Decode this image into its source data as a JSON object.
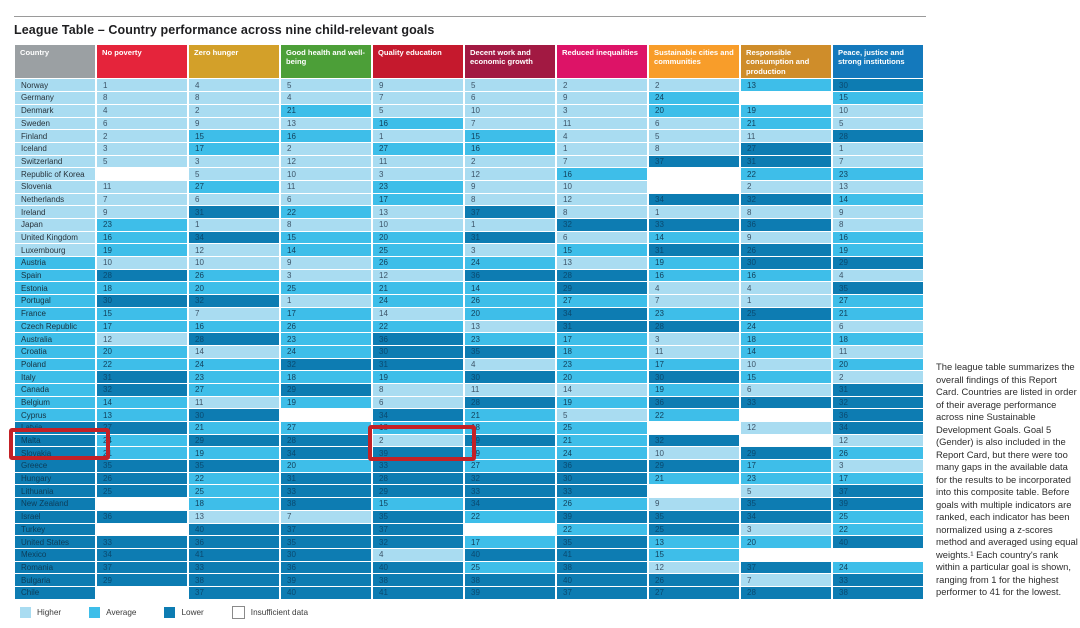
{
  "title": "League Table – Country performance across nine child-relevant goals",
  "note": {
    "text": "The league table summarizes the overall findings of this Report Card. Countries are listed in order of their average performance across nine Sustainable Development Goals. Goal 5 (Gender) is also included in the Report Card, but there were too many gaps in the available data for the results to be incorporated into this composite table. Before goals with multiple indicators are ranked, each indicator has been normalized using a z-scores method and averaged using equal weights.¹ Each country's rank within a particular goal is shown, ranging from 1 for the highest performer to 41 for the lowest."
  },
  "legend": {
    "items": [
      {
        "label": "Higher",
        "tier": "h",
        "color": "#a9dcf1"
      },
      {
        "label": "Average",
        "tier": "a",
        "color": "#3ebee9"
      },
      {
        "label": "Lower",
        "tier": "l",
        "color": "#0d7cb2"
      },
      {
        "label": "Insufficient data",
        "tier": "x",
        "color": "#ffffff"
      }
    ]
  },
  "highlight": {
    "color": "#c32126",
    "row": "Malta",
    "cell_goal": "Quality education",
    "cell_value": 2
  },
  "chart_data": {
    "type": "table",
    "title": "League Table – Country performance across nine child-relevant goals",
    "tier_colors": {
      "higher": "#a9dcf1",
      "average": "#3ebee9",
      "lower": "#0d7cb2",
      "insufficient": "#ffffff"
    },
    "rank_range": [
      1,
      41
    ],
    "columns": [
      {
        "key": "country",
        "label": "Country",
        "color": "#9ba0a3"
      },
      {
        "key": "np",
        "label": "No poverty",
        "color": "#e5243b"
      },
      {
        "key": "zh",
        "label": "Zero hunger",
        "color": "#d3a029"
      },
      {
        "key": "gh",
        "label": "Good health and well-being",
        "color": "#4c9f38"
      },
      {
        "key": "qe",
        "label": "Quality education",
        "color": "#c5192d"
      },
      {
        "key": "dw",
        "label": "Decent work and economic growth",
        "color": "#a21942"
      },
      {
        "key": "ri",
        "label": "Reduced inequalities",
        "color": "#dd1367"
      },
      {
        "key": "sc",
        "label": "Sustainable cities and communities",
        "color": "#f89d2a"
      },
      {
        "key": "rc",
        "label": "Responsible consumption and production",
        "color": "#cf8d2a"
      },
      {
        "key": "pj",
        "label": "Peace, justice and strong institutions",
        "color": "#1479bc"
      }
    ],
    "cell_encoding": "value followed by tier letter (h=higher, a=average, l=lower); x = insufficient data",
    "rows": [
      {
        "country": "Norway",
        "tier": "h",
        "cells": [
          "1h",
          "4h",
          "5h",
          "9h",
          "5h",
          "2h",
          "2h",
          "13a",
          "30l"
        ]
      },
      {
        "country": "Germany",
        "tier": "h",
        "cells": [
          "8h",
          "8h",
          "4h",
          "7h",
          "6h",
          "9h",
          "24a",
          "x",
          "15a"
        ]
      },
      {
        "country": "Denmark",
        "tier": "h",
        "cells": [
          "4h",
          "2h",
          "21a",
          "5h",
          "10h",
          "3h",
          "20a",
          "19a",
          "10h"
        ]
      },
      {
        "country": "Sweden",
        "tier": "h",
        "cells": [
          "6h",
          "9h",
          "13h",
          "16a",
          "7h",
          "11h",
          "6h",
          "21a",
          "5h"
        ]
      },
      {
        "country": "Finland",
        "tier": "h",
        "cells": [
          "2h",
          "15a",
          "16a",
          "1h",
          "15a",
          "4h",
          "5h",
          "11h",
          "28l"
        ]
      },
      {
        "country": "Iceland",
        "tier": "h",
        "cells": [
          "3h",
          "17a",
          "2h",
          "27a",
          "16a",
          "1h",
          "8h",
          "27l",
          "1h"
        ]
      },
      {
        "country": "Switzerland",
        "tier": "h",
        "cells": [
          "5h",
          "3h",
          "12h",
          "11h",
          "2h",
          "7h",
          "37l",
          "31l",
          "7h"
        ]
      },
      {
        "country": "Republic of Korea",
        "tier": "h",
        "cells": [
          "x",
          "5h",
          "10h",
          "3h",
          "12h",
          "16a",
          "x",
          "22a",
          "23a"
        ]
      },
      {
        "country": "Slovenia",
        "tier": "h",
        "cells": [
          "11h",
          "27a",
          "11h",
          "23a",
          "9h",
          "10h",
          "x",
          "2h",
          "13h"
        ]
      },
      {
        "country": "Netherlands",
        "tier": "h",
        "cells": [
          "7h",
          "6h",
          "6h",
          "17a",
          "8h",
          "12h",
          "34l",
          "32l",
          "14a"
        ]
      },
      {
        "country": "Ireland",
        "tier": "h",
        "cells": [
          "9h",
          "31l",
          "22a",
          "13h",
          "37l",
          "8h",
          "1h",
          "8h",
          "9h"
        ]
      },
      {
        "country": "Japan",
        "tier": "h",
        "cells": [
          "23a",
          "1h",
          "8h",
          "10h",
          "1h",
          "32l",
          "33l",
          "36l",
          "8h"
        ]
      },
      {
        "country": "United Kingdom",
        "tier": "h",
        "cells": [
          "16a",
          "34l",
          "15a",
          "20a",
          "31l",
          "6h",
          "14a",
          "9h",
          "16a"
        ]
      },
      {
        "country": "Luxembourg",
        "tier": "h",
        "cells": [
          "19a",
          "12h",
          "14a",
          "25a",
          "3h",
          "15a",
          "31l",
          "26l",
          "19a"
        ]
      },
      {
        "country": "Austria",
        "tier": "a",
        "cells": [
          "10h",
          "10h",
          "9h",
          "26a",
          "24a",
          "13h",
          "19a",
          "30l",
          "29l"
        ]
      },
      {
        "country": "Spain",
        "tier": "a",
        "cells": [
          "28l",
          "26a",
          "3h",
          "12h",
          "36l",
          "28l",
          "16a",
          "16a",
          "4h"
        ]
      },
      {
        "country": "Estonia",
        "tier": "a",
        "cells": [
          "18a",
          "20a",
          "25a",
          "21a",
          "14a",
          "29l",
          "4h",
          "4h",
          "35l"
        ]
      },
      {
        "country": "Portugal",
        "tier": "a",
        "cells": [
          "30l",
          "32l",
          "1h",
          "24a",
          "26a",
          "27a",
          "7h",
          "1h",
          "27a"
        ]
      },
      {
        "country": "France",
        "tier": "a",
        "cells": [
          "15a",
          "7h",
          "17a",
          "14h",
          "20a",
          "34l",
          "23a",
          "25l",
          "21a"
        ]
      },
      {
        "country": "Czech Republic",
        "tier": "a",
        "cells": [
          "17a",
          "16a",
          "26a",
          "22a",
          "13h",
          "31l",
          "28l",
          "24a",
          "6h"
        ]
      },
      {
        "country": "Australia",
        "tier": "a",
        "cells": [
          "12h",
          "28l",
          "23a",
          "36l",
          "23a",
          "17a",
          "3h",
          "18a",
          "18a"
        ]
      },
      {
        "country": "Croatia",
        "tier": "a",
        "cells": [
          "20a",
          "14h",
          "24a",
          "30l",
          "35l",
          "18a",
          "11h",
          "14a",
          "11h"
        ]
      },
      {
        "country": "Poland",
        "tier": "a",
        "cells": [
          "22a",
          "24a",
          "32l",
          "31l",
          "4h",
          "23a",
          "17a",
          "10h",
          "20a"
        ]
      },
      {
        "country": "Italy",
        "tier": "a",
        "cells": [
          "31l",
          "23a",
          "18a",
          "19a",
          "30l",
          "20a",
          "30l",
          "15a",
          "2h"
        ]
      },
      {
        "country": "Canada",
        "tier": "a",
        "cells": [
          "32l",
          "27a",
          "29l",
          "8h",
          "11h",
          "14h",
          "19a",
          "6h",
          "31l"
        ]
      },
      {
        "country": "Belgium",
        "tier": "a",
        "cells": [
          "14a",
          "11h",
          "19a",
          "6h",
          "28l",
          "19a",
          "36l",
          "33l",
          "32l"
        ]
      },
      {
        "country": "Cyprus",
        "tier": "a",
        "cells": [
          "13a",
          "30l",
          "x",
          "34l",
          "21a",
          "5h",
          "22a",
          "x",
          "36l"
        ]
      },
      {
        "country": "Latvia",
        "tier": "l",
        "cells": [
          "27l",
          "21a",
          "27a",
          "18a",
          "18a",
          "25a",
          "x",
          "12h",
          "34l"
        ]
      },
      {
        "country": "Malta",
        "tier": "l",
        "cells": [
          "24a",
          "29l",
          "28l",
          "2h",
          "29l",
          "21a",
          "32l",
          "x",
          "12h"
        ]
      },
      {
        "country": "Slovakia",
        "tier": "l",
        "cells": [
          "21a",
          "19a",
          "34l",
          "39l",
          "19a",
          "24a",
          "10h",
          "29l",
          "26a"
        ]
      },
      {
        "country": "Greece",
        "tier": "l",
        "cells": [
          "35l",
          "35l",
          "20a",
          "33l",
          "27a",
          "36l",
          "29l",
          "17a",
          "3h"
        ]
      },
      {
        "country": "Hungary",
        "tier": "l",
        "cells": [
          "26l",
          "22a",
          "31l",
          "28l",
          "32l",
          "30l",
          "21a",
          "23a",
          "17a"
        ]
      },
      {
        "country": "Lithuania",
        "tier": "l",
        "cells": [
          "25l",
          "25a",
          "33l",
          "29l",
          "33l",
          "33l",
          "x",
          "5h",
          "37l"
        ]
      },
      {
        "country": "New Zealand",
        "tier": "l",
        "cells": [
          "x",
          "18a",
          "38l",
          "15a",
          "34l",
          "26a",
          "9h",
          "35l",
          "39l"
        ]
      },
      {
        "country": "Israel",
        "tier": "l",
        "cells": [
          "36l",
          "13h",
          "7h",
          "35l",
          "22a",
          "39l",
          "35l",
          "34l",
          "25a"
        ]
      },
      {
        "country": "Turkey",
        "tier": "l",
        "cells": [
          "x",
          "40l",
          "37l",
          "37l",
          "x",
          "22a",
          "25l",
          "3h",
          "22a"
        ]
      },
      {
        "country": "United States",
        "tier": "l",
        "cells": [
          "33l",
          "36l",
          "35l",
          "32l",
          "17a",
          "35l",
          "13a",
          "20a",
          "40l"
        ]
      },
      {
        "country": "Mexico",
        "tier": "l",
        "cells": [
          "34l",
          "41l",
          "30l",
          "4h",
          "40l",
          "41l",
          "15a",
          "x",
          "x"
        ]
      },
      {
        "country": "Romania",
        "tier": "l",
        "cells": [
          "37l",
          "33l",
          "36l",
          "40l",
          "25a",
          "38l",
          "12h",
          "37l",
          "24a"
        ]
      },
      {
        "country": "Bulgaria",
        "tier": "l",
        "cells": [
          "29l",
          "38l",
          "39l",
          "38l",
          "38l",
          "40l",
          "26l",
          "7h",
          "33l"
        ]
      },
      {
        "country": "Chile",
        "tier": "l",
        "cells": [
          "x",
          "37l",
          "40l",
          "41l",
          "39l",
          "37l",
          "27l",
          "28l",
          "38l"
        ]
      }
    ]
  }
}
